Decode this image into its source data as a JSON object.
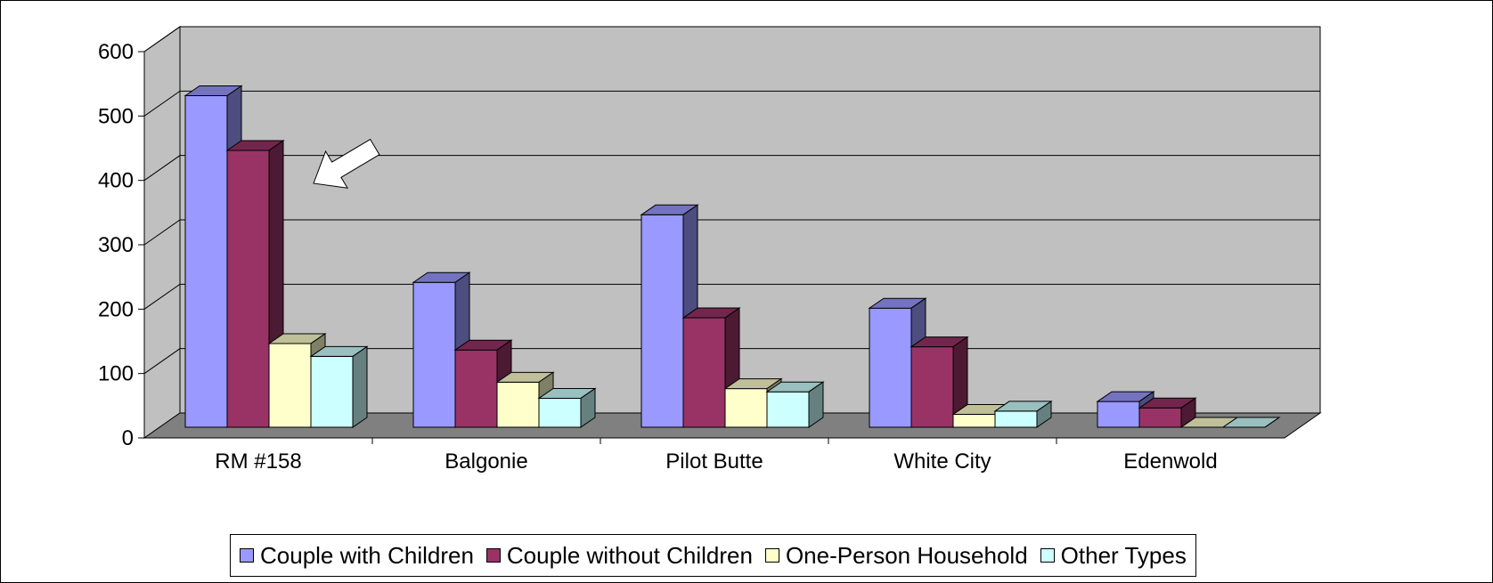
{
  "chart_data": {
    "type": "bar",
    "three_d": true,
    "categories": [
      "RM #158",
      "Balgonie",
      "Pilot Butte",
      "White City",
      "Edenwold"
    ],
    "series": [
      {
        "name": "Couple with Children",
        "color": "#9999FF",
        "values": [
          515,
          225,
          330,
          185,
          40
        ]
      },
      {
        "name": "Couple without Children",
        "color": "#993366",
        "values": [
          430,
          120,
          170,
          125,
          30
        ]
      },
      {
        "name": "One-Person Household",
        "color": "#FFFFCC",
        "values": [
          130,
          70,
          60,
          20,
          0
        ]
      },
      {
        "name": "Other Types",
        "color": "#CCFFFF",
        "values": [
          110,
          45,
          55,
          25,
          0
        ]
      }
    ],
    "yticks": [
      "0",
      "100",
      "200",
      "300",
      "400",
      "500",
      "600"
    ],
    "ylim": [
      0,
      600
    ],
    "grid": true,
    "legend_position": "bottom",
    "annotation": "white-arrow-pointing-left"
  }
}
